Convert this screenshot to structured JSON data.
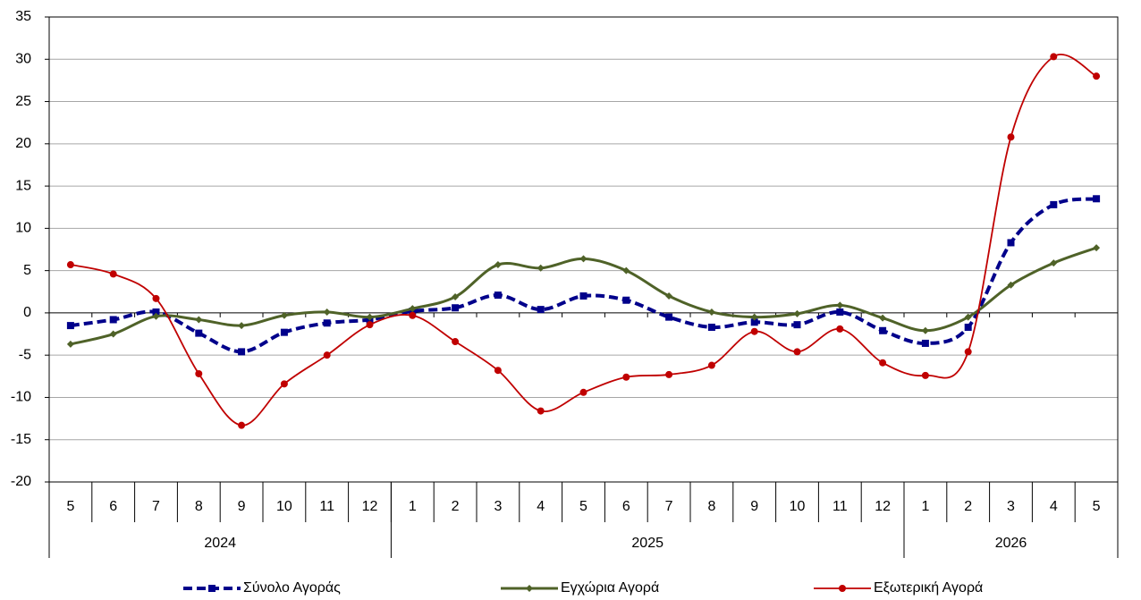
{
  "chart_data": {
    "type": "line",
    "groups": [
      {
        "label": "2024",
        "categories": [
          "5",
          "6",
          "7",
          "8",
          "9",
          "10",
          "11",
          "12"
        ]
      },
      {
        "label": "2025",
        "categories": [
          "1",
          "2",
          "3",
          "4",
          "5",
          "6",
          "7",
          "8",
          "9",
          "10",
          "11",
          "12"
        ]
      },
      {
        "label": "2026",
        "categories": [
          "1",
          "2",
          "3",
          "4",
          "5"
        ]
      }
    ],
    "series": [
      {
        "name": "Σύνολο Αγοράς",
        "color": "#00008b",
        "values": [
          -1.5,
          -0.8,
          0.1,
          -2.4,
          -4.6,
          -2.3,
          -1.2,
          -0.8,
          0.2,
          0.6,
          2.1,
          0.4,
          2.0,
          1.5,
          -0.5,
          -1.7,
          -1.1,
          -1.4,
          0.1,
          -2.1,
          -3.6,
          -1.7,
          8.3,
          12.8,
          13.5
        ]
      },
      {
        "name": "Εγχώρια Αγορά",
        "color": "#4f6228",
        "values": [
          -3.7,
          -2.5,
          -0.4,
          -0.8,
          -1.5,
          -0.3,
          0.1,
          -0.5,
          0.5,
          1.9,
          5.7,
          5.3,
          6.4,
          5.0,
          2.0,
          0.1,
          -0.5,
          -0.1,
          0.9,
          -0.6,
          -2.1,
          -0.5,
          3.3,
          5.9,
          7.7
        ]
      },
      {
        "name": "Εξωτερική Αγορά",
        "color": "#c00000",
        "values": [
          5.7,
          4.6,
          1.7,
          -7.2,
          -13.3,
          -8.4,
          -5.0,
          -1.4,
          -0.3,
          -3.4,
          -6.8,
          -11.6,
          -9.4,
          -7.6,
          -7.3,
          -6.2,
          -2.2,
          -4.6,
          -1.9,
          -5.9,
          -7.4,
          -4.6,
          20.8,
          30.3,
          28.0
        ]
      }
    ],
    "ylim": [
      -20,
      35
    ],
    "yticks": [
      -20,
      -15,
      -10,
      -5,
      0,
      5,
      10,
      15,
      20,
      25,
      30,
      35
    ],
    "grid": true,
    "legend": "bottom"
  }
}
